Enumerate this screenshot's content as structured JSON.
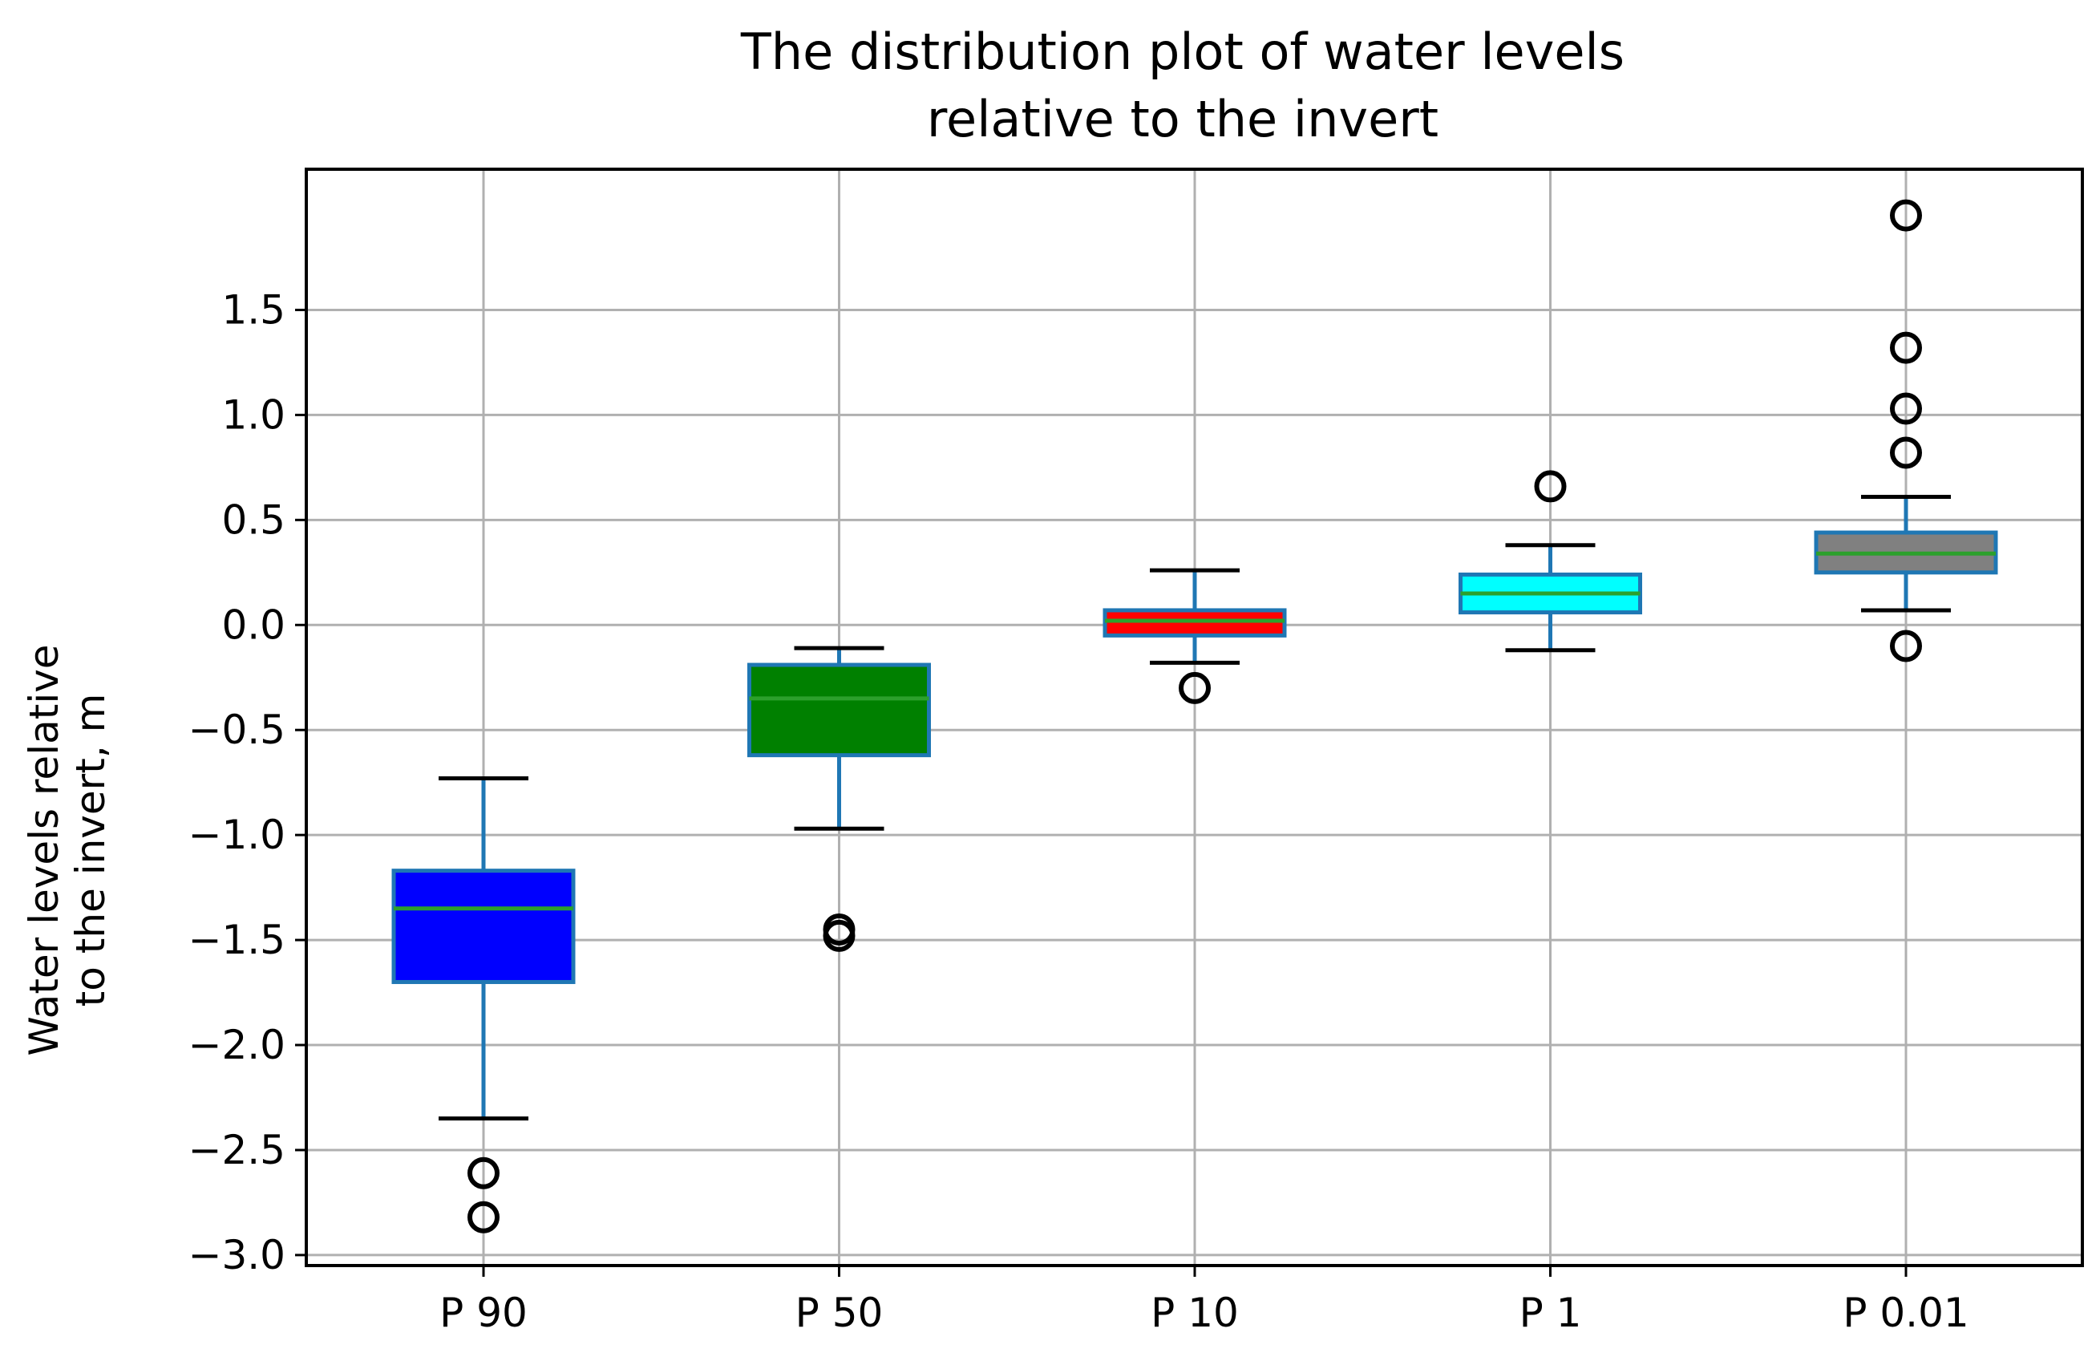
{
  "chart_data": {
    "type": "box",
    "title_lines": [
      "The distribution plot of water levels",
      "relative to the invert"
    ],
    "xlabel": "",
    "ylabel_lines": [
      "Water levels relative",
      "to the invert, m"
    ],
    "ylim": [
      -3.05,
      2.17
    ],
    "yticks": [
      -3.0,
      -2.5,
      -2.0,
      -1.5,
      -1.0,
      -0.5,
      0.0,
      0.5,
      1.0,
      1.5
    ],
    "ytick_labels": [
      "−3.0",
      "−2.5",
      "−2.0",
      "−1.5",
      "−1.0",
      "−0.5",
      "0.0",
      "0.5",
      "1.0",
      "1.5"
    ],
    "grid": true,
    "categories": [
      "P 90",
      "P 50",
      "P 10",
      "P 1",
      "P 0.01"
    ],
    "boxes": [
      {
        "label": "P 90",
        "whisker_low": -2.35,
        "q1": -1.7,
        "median": -1.35,
        "q3": -1.17,
        "whisker_high": -0.73,
        "outliers": [
          -2.61,
          -2.82
        ],
        "fill": "#0000ff"
      },
      {
        "label": "P 50",
        "whisker_low": -0.97,
        "q1": -0.62,
        "median": -0.35,
        "q3": -0.19,
        "whisker_high": -0.11,
        "outliers": [
          -1.45,
          -1.48
        ],
        "fill": "#008000"
      },
      {
        "label": "P 10",
        "whisker_low": -0.18,
        "q1": -0.05,
        "median": 0.02,
        "q3": 0.07,
        "whisker_high": 0.26,
        "outliers": [
          -0.3
        ],
        "fill": "#ff0000"
      },
      {
        "label": "P 1",
        "whisker_low": -0.12,
        "q1": 0.06,
        "median": 0.15,
        "q3": 0.24,
        "whisker_high": 0.38,
        "outliers": [
          0.66
        ],
        "fill": "#00ffff"
      },
      {
        "label": "P 0.01",
        "whisker_low": 0.07,
        "q1": 0.25,
        "median": 0.34,
        "q3": 0.44,
        "whisker_high": 0.61,
        "outliers": [
          -0.1,
          0.82,
          1.03,
          1.32,
          1.95
        ],
        "fill": "#808080"
      }
    ],
    "colors": {
      "box_edge": "#1f77b4",
      "whisker": "#1f77b4",
      "median": "#2ca02c",
      "grid": "#b0b0b0",
      "outlier": "#000000"
    }
  }
}
